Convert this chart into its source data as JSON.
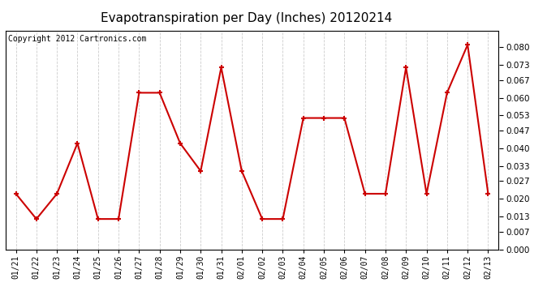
{
  "title": "Evapotranspiration per Day (Inches) 20120214",
  "copyright": "Copyright 2012 Cartronics.com",
  "x_labels": [
    "01/21",
    "01/22",
    "01/23",
    "01/24",
    "01/25",
    "01/26",
    "01/27",
    "01/28",
    "01/29",
    "01/30",
    "01/31",
    "02/01",
    "02/02",
    "02/03",
    "02/04",
    "02/05",
    "02/06",
    "02/07",
    "02/08",
    "02/09",
    "02/10",
    "02/11",
    "02/12",
    "02/13"
  ],
  "y_values": [
    0.022,
    0.012,
    0.022,
    0.042,
    0.012,
    0.012,
    0.062,
    0.062,
    0.042,
    0.031,
    0.072,
    0.031,
    0.012,
    0.012,
    0.052,
    0.052,
    0.052,
    0.022,
    0.022,
    0.072,
    0.022,
    0.062,
    0.081,
    0.022
  ],
  "line_color": "#cc0000",
  "marker": "+",
  "marker_size": 5,
  "marker_lw": 1.5,
  "line_width": 1.5,
  "ylim": [
    0.0,
    0.0867
  ],
  "yticks": [
    0.0,
    0.007,
    0.013,
    0.02,
    0.027,
    0.033,
    0.04,
    0.047,
    0.053,
    0.06,
    0.067,
    0.073,
    0.08
  ],
  "background_color": "#ffffff",
  "plot_bg_color": "#ffffff",
  "grid_color": "#cccccc",
  "title_fontsize": 11,
  "copyright_fontsize": 7,
  "tick_fontsize": 7.5,
  "xtick_fontsize": 7
}
